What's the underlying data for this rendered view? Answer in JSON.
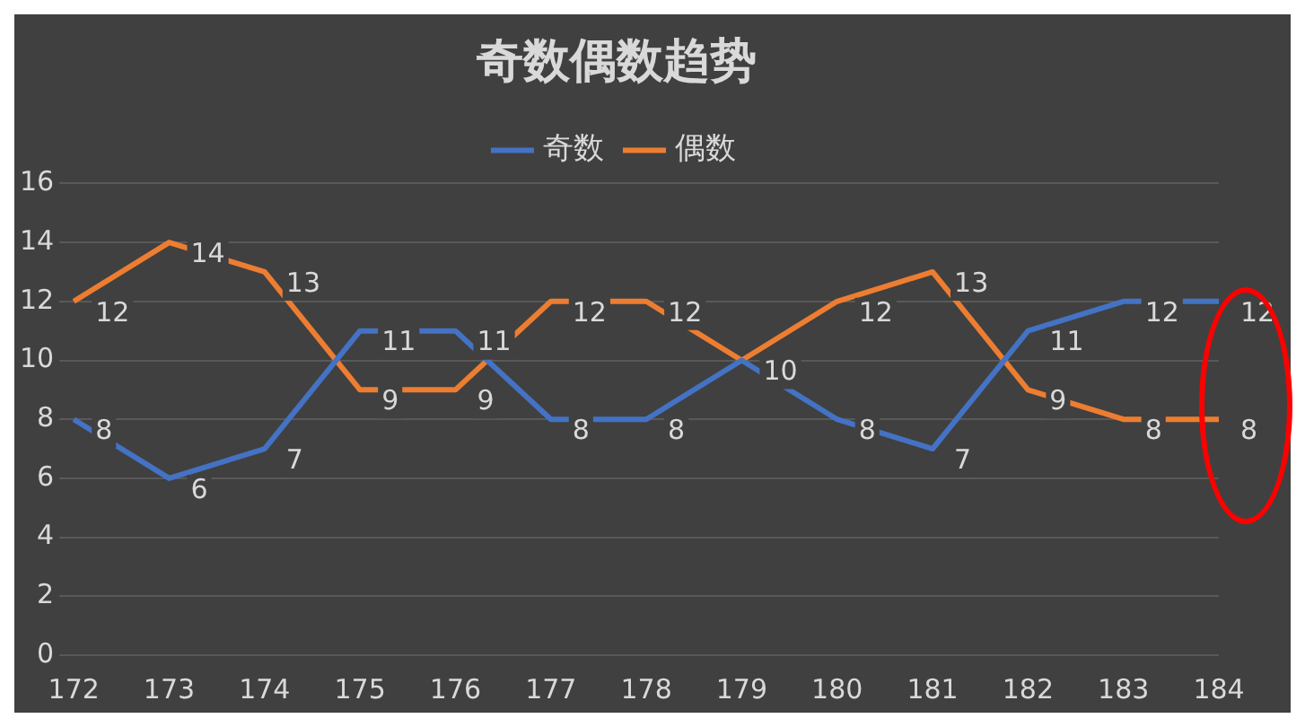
{
  "chart_data": {
    "type": "line",
    "title": "奇数偶数趋势",
    "categories": [
      "172",
      "173",
      "174",
      "175",
      "176",
      "177",
      "178",
      "179",
      "180",
      "181",
      "182",
      "183",
      "184"
    ],
    "series": [
      {
        "name": "奇数",
        "color": "#4472c4",
        "values": [
          8,
          6,
          7,
          11,
          11,
          8,
          8,
          10,
          8,
          7,
          11,
          12,
          12
        ],
        "value_labels": [
          "8",
          "6",
          "7",
          "11",
          "11",
          "8",
          "8",
          "10",
          "8",
          "7",
          "11",
          "12",
          "12"
        ]
      },
      {
        "name": "偶数",
        "color": "#ed7d31",
        "values": [
          12,
          14,
          13,
          9,
          9,
          12,
          12,
          10,
          12,
          13,
          9,
          8,
          8
        ],
        "value_labels": [
          "12",
          "14",
          "13",
          "9",
          "9",
          "12",
          "12",
          null,
          "12",
          "13",
          "9",
          "8",
          "8"
        ]
      }
    ],
    "ylim": [
      0,
      16
    ],
    "yticks": [
      0,
      2,
      4,
      6,
      8,
      10,
      12,
      14,
      16
    ],
    "grid": "y",
    "legend": "top",
    "marker": "none",
    "line_style": "solid"
  }
}
